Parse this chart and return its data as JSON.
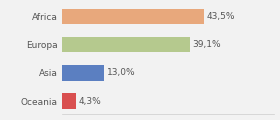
{
  "categories": [
    "Africa",
    "Europa",
    "Asia",
    "Oceania"
  ],
  "values": [
    43.5,
    39.1,
    13.0,
    4.3
  ],
  "labels": [
    "43,5%",
    "39,1%",
    "13,0%",
    "4,3%"
  ],
  "bar_colors": [
    "#e8a87c",
    "#b5c98e",
    "#5b7fc1",
    "#d94f4f"
  ],
  "background_color": "#f2f2f2",
  "xlim": [
    0,
    65
  ],
  "label_fontsize": 6.5,
  "tick_fontsize": 6.5,
  "bar_height": 0.55
}
